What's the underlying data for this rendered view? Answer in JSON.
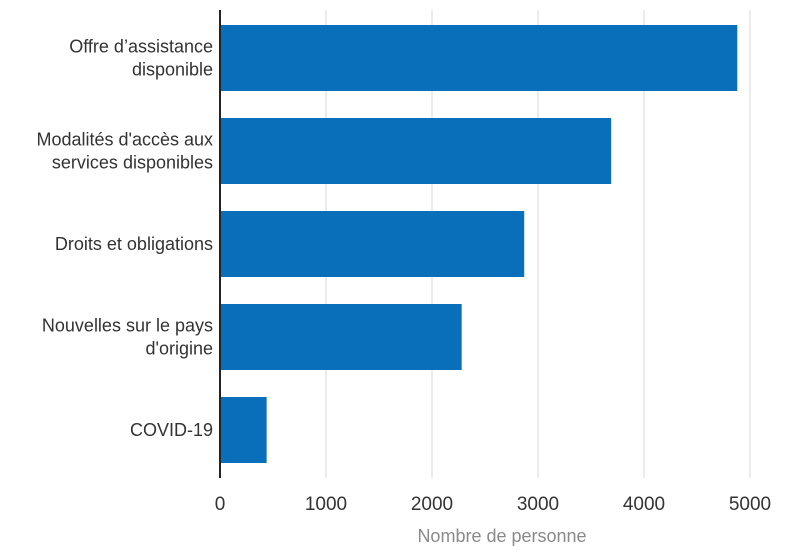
{
  "chart_data": {
    "type": "bar",
    "orientation": "horizontal",
    "categories": [
      [
        "Offre d’assistance",
        "disponible"
      ],
      [
        "Modalités d'accès aux",
        "services disponibles"
      ],
      [
        "Droits et obligations"
      ],
      [
        "Nouvelles sur le pays",
        "d'origine"
      ],
      [
        "COVID-19"
      ]
    ],
    "values": [
      4880,
      3690,
      2870,
      2280,
      440
    ],
    "xlabel": "Nombre de personne",
    "ylabel": "",
    "xlim": [
      0,
      5000
    ],
    "xticks": [
      0,
      1000,
      2000,
      3000,
      4000,
      5000
    ],
    "grid": "vertical",
    "bar_color": "#0a6fbb",
    "grid_color": "#d7d7d7",
    "axis_color": "#222222"
  }
}
